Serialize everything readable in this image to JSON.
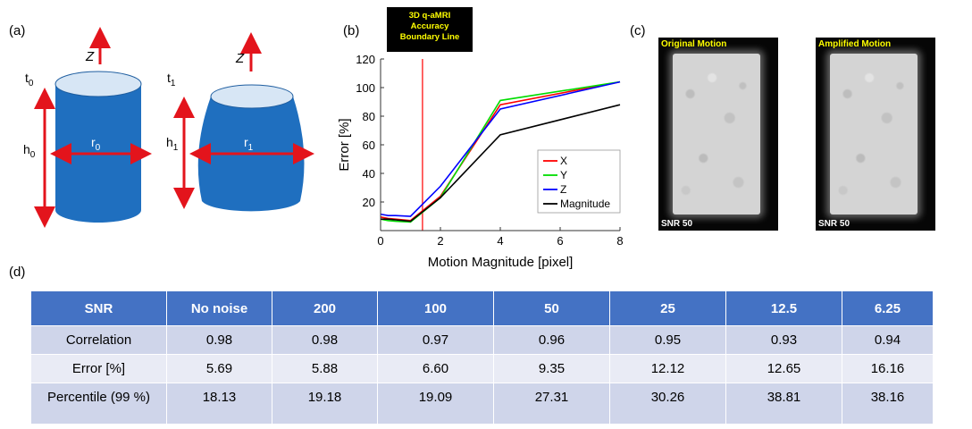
{
  "panels": {
    "a": "(a)",
    "b": "(b)",
    "c": "(c)",
    "d": "(d)"
  },
  "diagram": {
    "axis_label": "Z",
    "t0_base": "t",
    "t0_sub": "0",
    "t1_base": "t",
    "t1_sub": "1",
    "h0_base": "h",
    "h0_sub": "0",
    "h1_base": "h",
    "h1_sub": "1",
    "r0_base": "r",
    "r0_sub": "0",
    "r1_base": "r",
    "r1_sub": "1",
    "colors": {
      "body": "#1f6fbf",
      "top": "#d7e6f5",
      "arrow": "#e3141c"
    }
  },
  "callout": {
    "lines": [
      "3D q-aMRI",
      "Accuracy",
      "Boundary Line"
    ]
  },
  "chart_data": {
    "type": "line",
    "xlabel": "Motion Magnitude [pixel]",
    "ylabel": "Error [%]",
    "xlim": [
      0,
      8
    ],
    "ylim": [
      0,
      120
    ],
    "xticks": [
      "0",
      "2",
      "4",
      "6",
      "8"
    ],
    "yticks": [
      "20",
      "40",
      "60",
      "80",
      "100",
      "120"
    ],
    "boundary_x": 1.4,
    "legend_position": "bottom-right",
    "series": [
      {
        "name": "X",
        "color": "#ff0000",
        "x": [
          0,
          0.25,
          0.5,
          1,
          2,
          4,
          8
        ],
        "y": [
          9.5,
          8.5,
          8,
          7,
          24,
          88,
          104
        ]
      },
      {
        "name": "Y",
        "color": "#00dd00",
        "x": [
          0,
          0.25,
          0.5,
          1,
          2,
          4,
          8
        ],
        "y": [
          8,
          7,
          6.5,
          6,
          23,
          91,
          104
        ]
      },
      {
        "name": "Z",
        "color": "#0000ff",
        "x": [
          0,
          0.25,
          0.5,
          1,
          2,
          4,
          8
        ],
        "y": [
          11.5,
          10.5,
          10.5,
          10,
          31,
          85,
          104
        ]
      },
      {
        "name": "Magnitude",
        "color": "#000000",
        "x": [
          0,
          0.25,
          0.5,
          1,
          2,
          4,
          8
        ],
        "y": [
          8,
          8,
          7.5,
          6.5,
          23,
          67,
          88
        ]
      }
    ]
  },
  "images": [
    {
      "title": "Original Motion",
      "snr": "SNR 50"
    },
    {
      "title": "Amplified Motion",
      "snr": "SNR 50"
    }
  ],
  "table": {
    "headers": [
      "SNR",
      "No noise",
      "200",
      "100",
      "50",
      "25",
      "12.5",
      "6.25"
    ],
    "rows": [
      [
        "Correlation",
        "0.98",
        "0.98",
        "0.97",
        "0.96",
        "0.95",
        "0.93",
        "0.94"
      ],
      [
        "Error [%]",
        "5.69",
        "5.88",
        "6.60",
        "9.35",
        "12.12",
        "12.65",
        "16.16"
      ],
      [
        "Percentile (99 %)",
        "18.13",
        "19.18",
        "19.09",
        "27.31",
        "30.26",
        "38.81",
        "38.16"
      ]
    ]
  }
}
